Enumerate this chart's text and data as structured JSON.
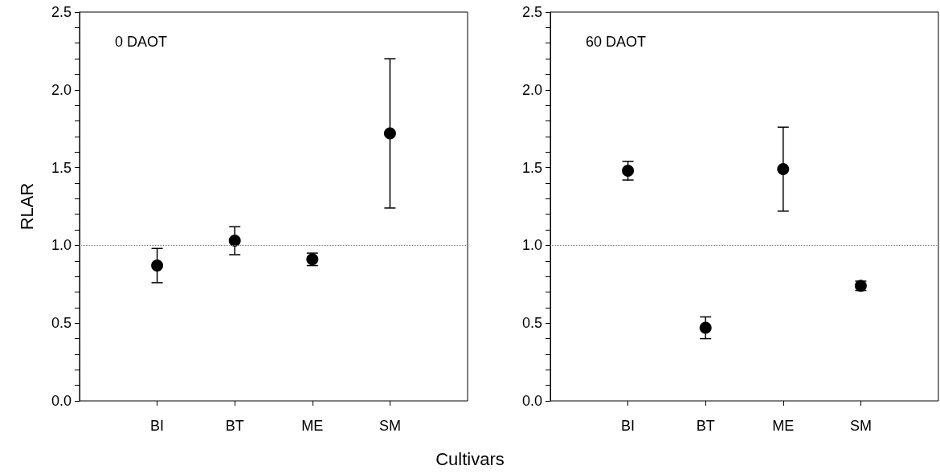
{
  "chart_data": [
    {
      "type": "scatter",
      "ylabel": "RLAR",
      "xlabel": "Cultivars",
      "annotations": [
        "0 DAOT"
      ],
      "categories": [
        "BI",
        "BT",
        "ME",
        "SM"
      ],
      "values": [
        0.87,
        1.03,
        0.91,
        1.72
      ],
      "errors": [
        0.11,
        0.09,
        0.04,
        0.48
      ],
      "color": "#000000",
      "marker": "circle",
      "ylim": [
        0,
        2.5
      ],
      "yticks": [
        {
          "value": 0,
          "label": "0.0"
        },
        {
          "value": 0.1,
          "label": null
        },
        {
          "value": 0.2,
          "label": null
        },
        {
          "value": 0.3,
          "label": null
        },
        {
          "value": 0.4,
          "label": null
        },
        {
          "value": 0.5,
          "label": "0.5"
        },
        {
          "value": 0.6,
          "label": null
        },
        {
          "value": 0.7,
          "label": null
        },
        {
          "value": 0.8,
          "label": null
        },
        {
          "value": 0.9,
          "label": null
        },
        {
          "value": 1,
          "label": "1.0"
        },
        {
          "value": 1.1,
          "label": null
        },
        {
          "value": 1.2,
          "label": null
        },
        {
          "value": 1.3,
          "label": null
        },
        {
          "value": 1.4,
          "label": null
        },
        {
          "value": 1.5,
          "label": "1.5"
        },
        {
          "value": 1.6,
          "label": null
        },
        {
          "value": 1.7,
          "label": null
        },
        {
          "value": 1.8,
          "label": null
        },
        {
          "value": 1.9,
          "label": null
        },
        {
          "value": 2,
          "label": "2.0"
        },
        {
          "value": 2.1,
          "label": null
        },
        {
          "value": 2.2,
          "label": null
        },
        {
          "value": 2.3,
          "label": null
        },
        {
          "value": 2.4,
          "label": null
        },
        {
          "value": 2.5,
          "label": "2.5"
        }
      ],
      "ref_lines": [
        {
          "axis": "y",
          "value": 1,
          "color": "#808080",
          "line_style": "dotted"
        }
      ],
      "grid": false
    },
    {
      "type": "scatter",
      "annotations": [
        "60 DAOT"
      ],
      "categories": [
        "BI",
        "BT",
        "ME",
        "SM"
      ],
      "values": [
        1.48,
        0.47,
        1.49,
        0.74
      ],
      "errors": [
        0.06,
        0.07,
        0.27,
        0.03
      ],
      "color": "#000000",
      "marker": "circle",
      "ylim": [
        0,
        2.5
      ],
      "yticks": [
        {
          "value": 0,
          "label": "0.0"
        },
        {
          "value": 0.1,
          "label": null
        },
        {
          "value": 0.2,
          "label": null
        },
        {
          "value": 0.3,
          "label": null
        },
        {
          "value": 0.4,
          "label": null
        },
        {
          "value": 0.5,
          "label": "0.5"
        },
        {
          "value": 0.6,
          "label": null
        },
        {
          "value": 0.7,
          "label": null
        },
        {
          "value": 0.8,
          "label": null
        },
        {
          "value": 0.9,
          "label": null
        },
        {
          "value": 1,
          "label": "1.0"
        },
        {
          "value": 1.1,
          "label": null
        },
        {
          "value": 1.2,
          "label": null
        },
        {
          "value": 1.3,
          "label": null
        },
        {
          "value": 1.4,
          "label": null
        },
        {
          "value": 1.5,
          "label": "1.5"
        },
        {
          "value": 1.6,
          "label": null
        },
        {
          "value": 1.7,
          "label": null
        },
        {
          "value": 1.8,
          "label": null
        },
        {
          "value": 1.9,
          "label": null
        },
        {
          "value": 2,
          "label": "2.0"
        },
        {
          "value": 2.1,
          "label": null
        },
        {
          "value": 2.2,
          "label": null
        },
        {
          "value": 2.3,
          "label": null
        },
        {
          "value": 2.4,
          "label": null
        },
        {
          "value": 2.5,
          "label": "2.5"
        }
      ],
      "ref_lines": [
        {
          "axis": "y",
          "value": 1,
          "color": "#808080",
          "line_style": "dotted"
        }
      ],
      "grid": false
    }
  ]
}
